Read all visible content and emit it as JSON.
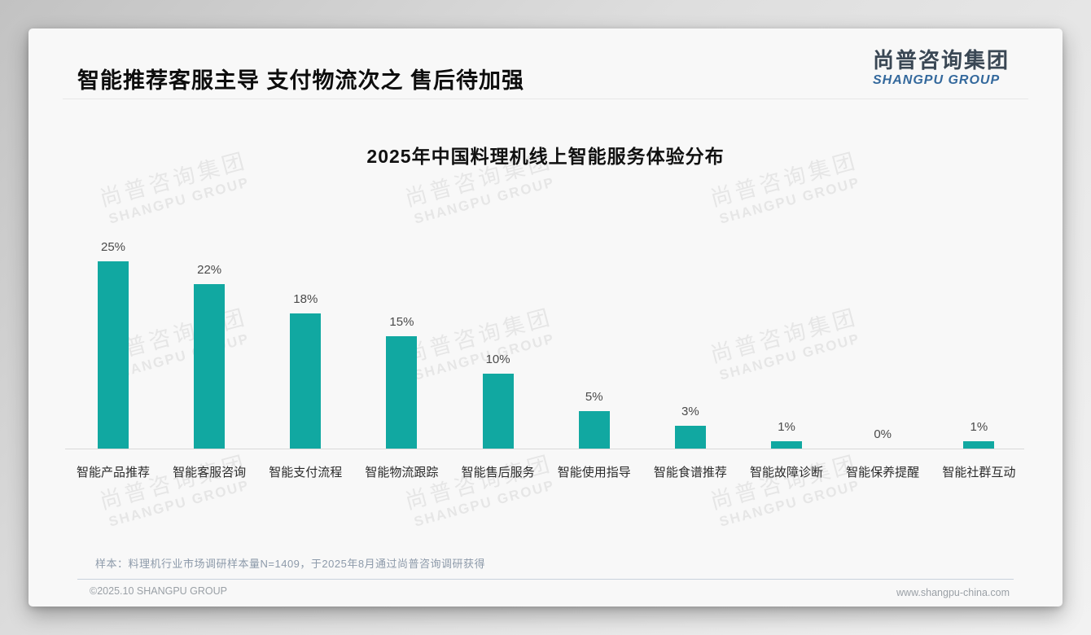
{
  "header": {
    "title": "智能推荐客服主导 支付物流次之 售后待加强"
  },
  "logo": {
    "chinese": "尚普咨询集团",
    "english": "SHANGPU GROUP"
  },
  "watermark": {
    "line1": "尚普咨询集团",
    "line2": "SHANGPU GROUP"
  },
  "chart_data": {
    "type": "bar",
    "title": "2025年中国料理机线上智能服务体验分布",
    "categories": [
      "智能产品推荐",
      "智能客服咨询",
      "智能支付流程",
      "智能物流跟踪",
      "智能售后服务",
      "智能使用指导",
      "智能食谱推荐",
      "智能故障诊断",
      "智能保养提醒",
      "智能社群互动"
    ],
    "values": [
      25,
      22,
      18,
      15,
      10,
      5,
      3,
      1,
      0,
      1
    ],
    "data_labels": [
      "25%",
      "22%",
      "18%",
      "15%",
      "10%",
      "5%",
      "3%",
      "1%",
      "0%",
      "1%"
    ],
    "unit": "%",
    "xlabel": "",
    "ylabel": "",
    "ylim": [
      0,
      28
    ],
    "grid": false,
    "legend": "none",
    "bar_color": "#11a8a1",
    "axis_line_color": "#d9d9d9"
  },
  "footnote": "样本：料理机行业市场调研样本量N=1409，于2025年8月通过尚普咨询调研获得",
  "footer": {
    "copyright": "©2025.10 SHANGPU GROUP",
    "website": "www.shangpu-china.com"
  },
  "colors": {
    "bar": "#11a8a1",
    "logo_dark": "#3a4754",
    "logo_blue": "#33689c",
    "note_text": "#8d9aaa",
    "card_bg": "#f8f8f8"
  }
}
